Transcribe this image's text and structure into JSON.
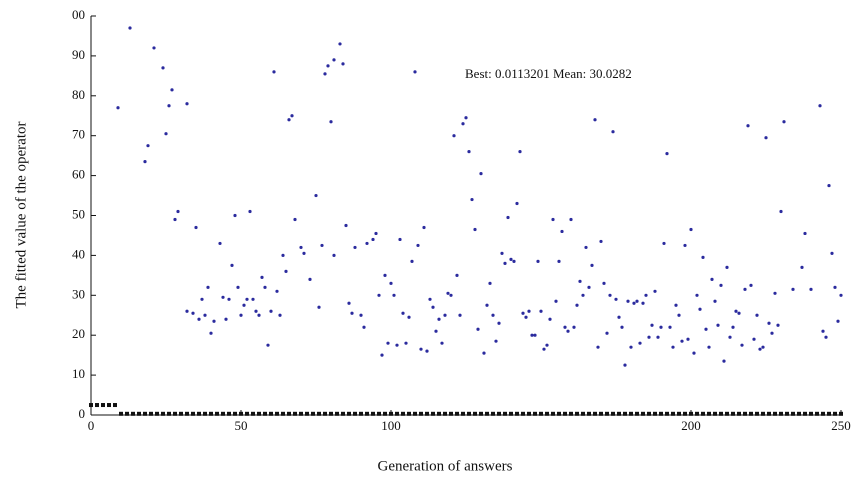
{
  "chart_data": {
    "type": "scatter",
    "annotation": "Best: 0.0113201 Mean: 30.0282",
    "x_label": "Generation of answers",
    "y_label": "The fitted value of the operator",
    "xlim": [
      0,
      250
    ],
    "ylim": [
      0,
      100
    ],
    "xticks": [
      0,
      50,
      100,
      200,
      250
    ],
    "yticks": [
      0,
      10,
      20,
      30,
      40,
      50,
      60,
      70,
      80,
      90,
      {
        "value": 100,
        "label": "00"
      }
    ],
    "series": [
      {
        "color": "#2b2b9e",
        "marker": "dot",
        "x": [
          9,
          13,
          18,
          19,
          21,
          24,
          25,
          26,
          27,
          28,
          29,
          32,
          32,
          34,
          35,
          36,
          37,
          38,
          39,
          40,
          41,
          43,
          44,
          45,
          46,
          47,
          48,
          49,
          50,
          51,
          52,
          53,
          54,
          55,
          56,
          57,
          58,
          59,
          60,
          61,
          62,
          63,
          64,
          65,
          66,
          67,
          68,
          70,
          71,
          73,
          75,
          76,
          77,
          78,
          79,
          80,
          81,
          81,
          83,
          84,
          85,
          86,
          87,
          88,
          90,
          91,
          92,
          94,
          95,
          96,
          97,
          98,
          99,
          100,
          101,
          102,
          103,
          104,
          105,
          106,
          107,
          108,
          109,
          110,
          111,
          112,
          113,
          114,
          115,
          116,
          117,
          118,
          119,
          120,
          121,
          122,
          123,
          124,
          125,
          126,
          127,
          128,
          129,
          130,
          131,
          132,
          133,
          134,
          135,
          136,
          137,
          138,
          139,
          140,
          141,
          142,
          143,
          144,
          145,
          146,
          147,
          148,
          149,
          150,
          151,
          152,
          153,
          154,
          155,
          156,
          157,
          158,
          159,
          160,
          161,
          162,
          163,
          164,
          165,
          166,
          167,
          168,
          169,
          170,
          171,
          172,
          173,
          174,
          175,
          176,
          177,
          178,
          179,
          180,
          181,
          182,
          183,
          184,
          185,
          186,
          187,
          188,
          189,
          190,
          191,
          192,
          193,
          194,
          195,
          196,
          197,
          198,
          199,
          200,
          201,
          202,
          203,
          204,
          205,
          206,
          207,
          208,
          209,
          210,
          211,
          212,
          213,
          214,
          215,
          216,
          217,
          218,
          219,
          220,
          221,
          222,
          223,
          224,
          225,
          226,
          227,
          228,
          229,
          230,
          231,
          234,
          237,
          238,
          240,
          243,
          244,
          245,
          246,
          247,
          248,
          249,
          250
        ],
        "values": [
          77,
          97,
          63.5,
          67.5,
          92,
          87,
          70.5,
          77.5,
          81.5,
          49,
          51,
          78,
          26,
          25.5,
          47,
          24,
          29,
          25,
          32,
          20.5,
          23.5,
          43,
          29.5,
          24,
          29,
          37.5,
          50,
          32,
          25,
          27.5,
          29,
          51,
          29,
          26,
          25,
          34.5,
          32,
          17.5,
          26,
          86,
          31,
          25,
          40,
          36,
          74,
          75,
          49,
          42,
          40.5,
          34,
          55,
          27,
          42.5,
          85.5,
          87.5,
          73.5,
          89,
          40,
          93,
          88,
          47.5,
          28,
          25.5,
          42,
          25,
          22,
          43,
          44,
          45.5,
          30,
          15,
          35,
          18,
          33,
          30,
          17.5,
          44,
          25.5,
          18,
          24.5,
          38.5,
          86,
          42.5,
          16.5,
          47,
          16,
          29,
          27,
          21,
          24,
          18,
          25,
          30.5,
          30,
          70,
          35,
          25,
          73,
          74.5,
          66,
          54,
          46.5,
          21.5,
          60.5,
          15.5,
          27.5,
          33,
          25,
          18.5,
          23,
          40.5,
          38,
          49.5,
          39,
          38.5,
          53,
          66,
          25.5,
          24.5,
          26,
          20,
          20,
          38.5,
          26,
          16.5,
          17.5,
          24,
          49,
          28.5,
          38.5,
          46,
          22,
          21,
          49,
          22,
          27.5,
          33.5,
          30,
          42,
          32,
          37.5,
          74,
          17,
          43.5,
          33,
          20.5,
          30,
          71,
          29,
          24.5,
          22,
          12.5,
          28.5,
          17,
          28,
          28.5,
          18,
          28,
          30,
          19.5,
          22.5,
          31,
          19.5,
          22,
          43,
          65.5,
          22,
          17,
          27.5,
          25,
          18.5,
          42.5,
          19,
          46.5,
          15.5,
          30,
          26.5,
          39.5,
          21.5,
          17,
          34,
          28.5,
          22.5,
          32.5,
          13.5,
          37,
          19.5,
          22,
          26,
          25.5,
          17.5,
          31.5,
          72.5,
          32.5,
          19,
          25,
          16.5,
          17,
          69.5,
          23,
          20.5,
          30.5,
          22.5,
          51,
          73.5,
          31.5,
          37,
          45.5,
          31.5,
          77.5,
          21,
          19.5,
          57.5,
          40.5,
          32,
          23.5,
          30
        ]
      },
      {
        "color": "#111111",
        "marker": "square",
        "x": [
          0,
          2,
          4,
          6,
          8,
          10,
          12,
          14,
          16,
          18,
          20,
          22,
          24,
          26,
          28,
          30,
          32,
          34,
          36,
          38,
          40,
          42,
          44,
          46,
          48,
          50,
          52,
          54,
          56,
          58,
          60,
          62,
          64,
          66,
          68,
          70,
          72,
          74,
          76,
          78,
          80,
          82,
          84,
          86,
          88,
          90,
          92,
          94,
          96,
          98,
          100,
          102,
          104,
          106,
          108,
          110,
          112,
          114,
          116,
          118,
          120,
          122,
          124,
          126,
          128,
          130,
          132,
          134,
          136,
          138,
          140,
          142,
          144,
          146,
          148,
          150,
          152,
          154,
          156,
          158,
          160,
          162,
          164,
          166,
          168,
          170,
          172,
          174,
          176,
          178,
          180,
          182,
          184,
          186,
          188,
          190,
          192,
          194,
          196,
          198,
          200,
          202,
          204,
          206,
          208,
          210,
          212,
          214,
          216,
          218,
          220,
          222,
          224,
          226,
          228,
          230,
          232,
          234,
          236,
          238,
          240,
          242,
          244,
          246,
          248,
          250
        ],
        "values": [
          2.5,
          2.5,
          2.5,
          2.5,
          2.5,
          0.3,
          0.3,
          0.3,
          0.3,
          0.3,
          0.3,
          0.3,
          0.3,
          0.3,
          0.3,
          0.3,
          0.3,
          0.3,
          0.3,
          0.3,
          0.3,
          0.3,
          0.3,
          0.3,
          0.3,
          0.3,
          0.3,
          0.3,
          0.3,
          0.3,
          0.3,
          0.3,
          0.3,
          0.3,
          0.3,
          0.3,
          0.3,
          0.3,
          0.3,
          0.3,
          0.3,
          0.3,
          0.3,
          0.3,
          0.3,
          0.3,
          0.3,
          0.3,
          0.3,
          0.3,
          0.3,
          0.3,
          0.3,
          0.3,
          0.3,
          0.3,
          0.3,
          0.3,
          0.3,
          0.3,
          0.3,
          0.3,
          0.3,
          0.3,
          0.3,
          0.3,
          0.3,
          0.3,
          0.3,
          0.3,
          0.3,
          0.3,
          0.3,
          0.3,
          0.3,
          0.3,
          0.3,
          0.3,
          0.3,
          0.3,
          0.3,
          0.3,
          0.3,
          0.3,
          0.3,
          0.3,
          0.3,
          0.3,
          0.3,
          0.3,
          0.3,
          0.3,
          0.3,
          0.3,
          0.3,
          0.3,
          0.3,
          0.3,
          0.3,
          0.3,
          0.3,
          0.3,
          0.3,
          0.3,
          0.3,
          0.3,
          0.3,
          0.3,
          0.3,
          0.3,
          0.3,
          0.3,
          0.3,
          0.3,
          0.3,
          0.3,
          0.3,
          0.3,
          0.3,
          0.3,
          0.3,
          0.3,
          0.3,
          0.3,
          0.3,
          0.3
        ]
      }
    ]
  }
}
